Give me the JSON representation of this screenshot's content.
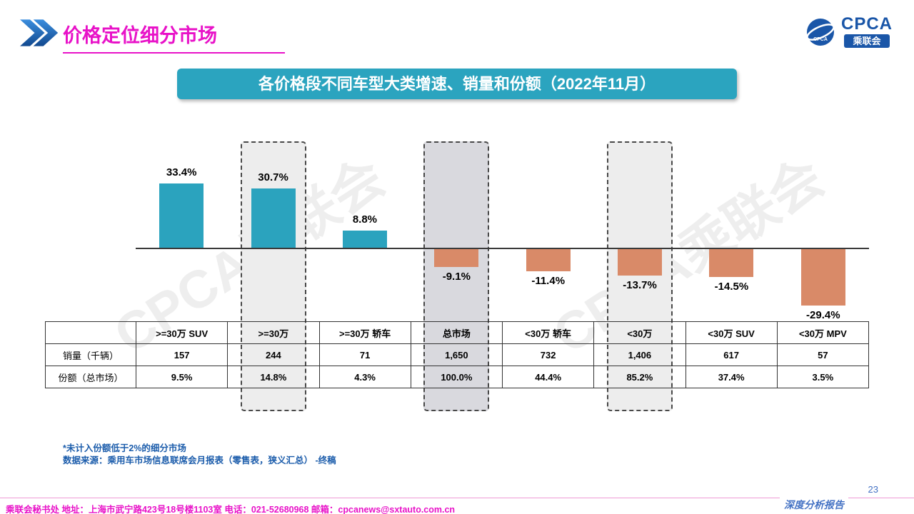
{
  "page": {
    "title": "价格定位细分市场",
    "page_number": "23",
    "report_label": "深度分析报告"
  },
  "logo": {
    "cpca": "CPCA",
    "sub": "乘联会"
  },
  "banner": {
    "title": "各价格段不同车型大类增速、销量和份额（2022年11月）"
  },
  "watermark": "CPCA乘联会",
  "colors": {
    "positive_bar": "#2BA3BE",
    "negative_bar": "#D98A68",
    "banner_teal": "#2BA4BF",
    "title_magenta": "#E812C8",
    "footnote_blue": "#1b5cab",
    "page_blue": "#4472c4",
    "highlight_fill": "#ededed",
    "highlight_fill_dark": "#d9d9de"
  },
  "chart_data": {
    "type": "bar",
    "title": "各价格段不同车型大类增速、销量和份额（2022年11月）",
    "categories": [
      ">=30万 SUV",
      ">=30万",
      ">=30万 轿车",
      "总市场",
      "<30万 轿车",
      "<30万",
      "<30万 SUV",
      "<30万 MPV"
    ],
    "values": [
      33.4,
      30.7,
      8.8,
      -9.1,
      -11.4,
      -13.7,
      -14.5,
      -29.4
    ],
    "value_labels": [
      "33.4%",
      "30.7%",
      "8.8%",
      "-9.1%",
      "-11.4%",
      "-13.7%",
      "-14.5%",
      "-29.4%"
    ],
    "highlighted_indices": [
      1,
      3,
      5
    ],
    "dark_highlight_index": 3,
    "ylim": [
      -35,
      40
    ],
    "xlabel": "",
    "ylabel": "",
    "legend": "none",
    "grid": false,
    "table_rows": [
      {
        "label": "销量（千辆）",
        "values": [
          "157",
          "244",
          "71",
          "1,650",
          "732",
          "1,406",
          "617",
          "57"
        ]
      },
      {
        "label": "份额（总市场）",
        "values": [
          "9.5%",
          "14.8%",
          "4.3%",
          "100.0%",
          "44.4%",
          "85.2%",
          "37.4%",
          "3.5%"
        ]
      }
    ]
  },
  "footnotes": {
    "line1": "*未计入份额低于2%的细分市场",
    "line2": "数据来源：乘用车市场信息联席会月报表（零售表，狭义汇总） -终稿"
  },
  "footer": {
    "text": "乘联会秘书处   地址：上海市武宁路423号18号楼1103室  电话：021-52680968   邮箱：cpcanews@sxtauto.com.cn"
  }
}
